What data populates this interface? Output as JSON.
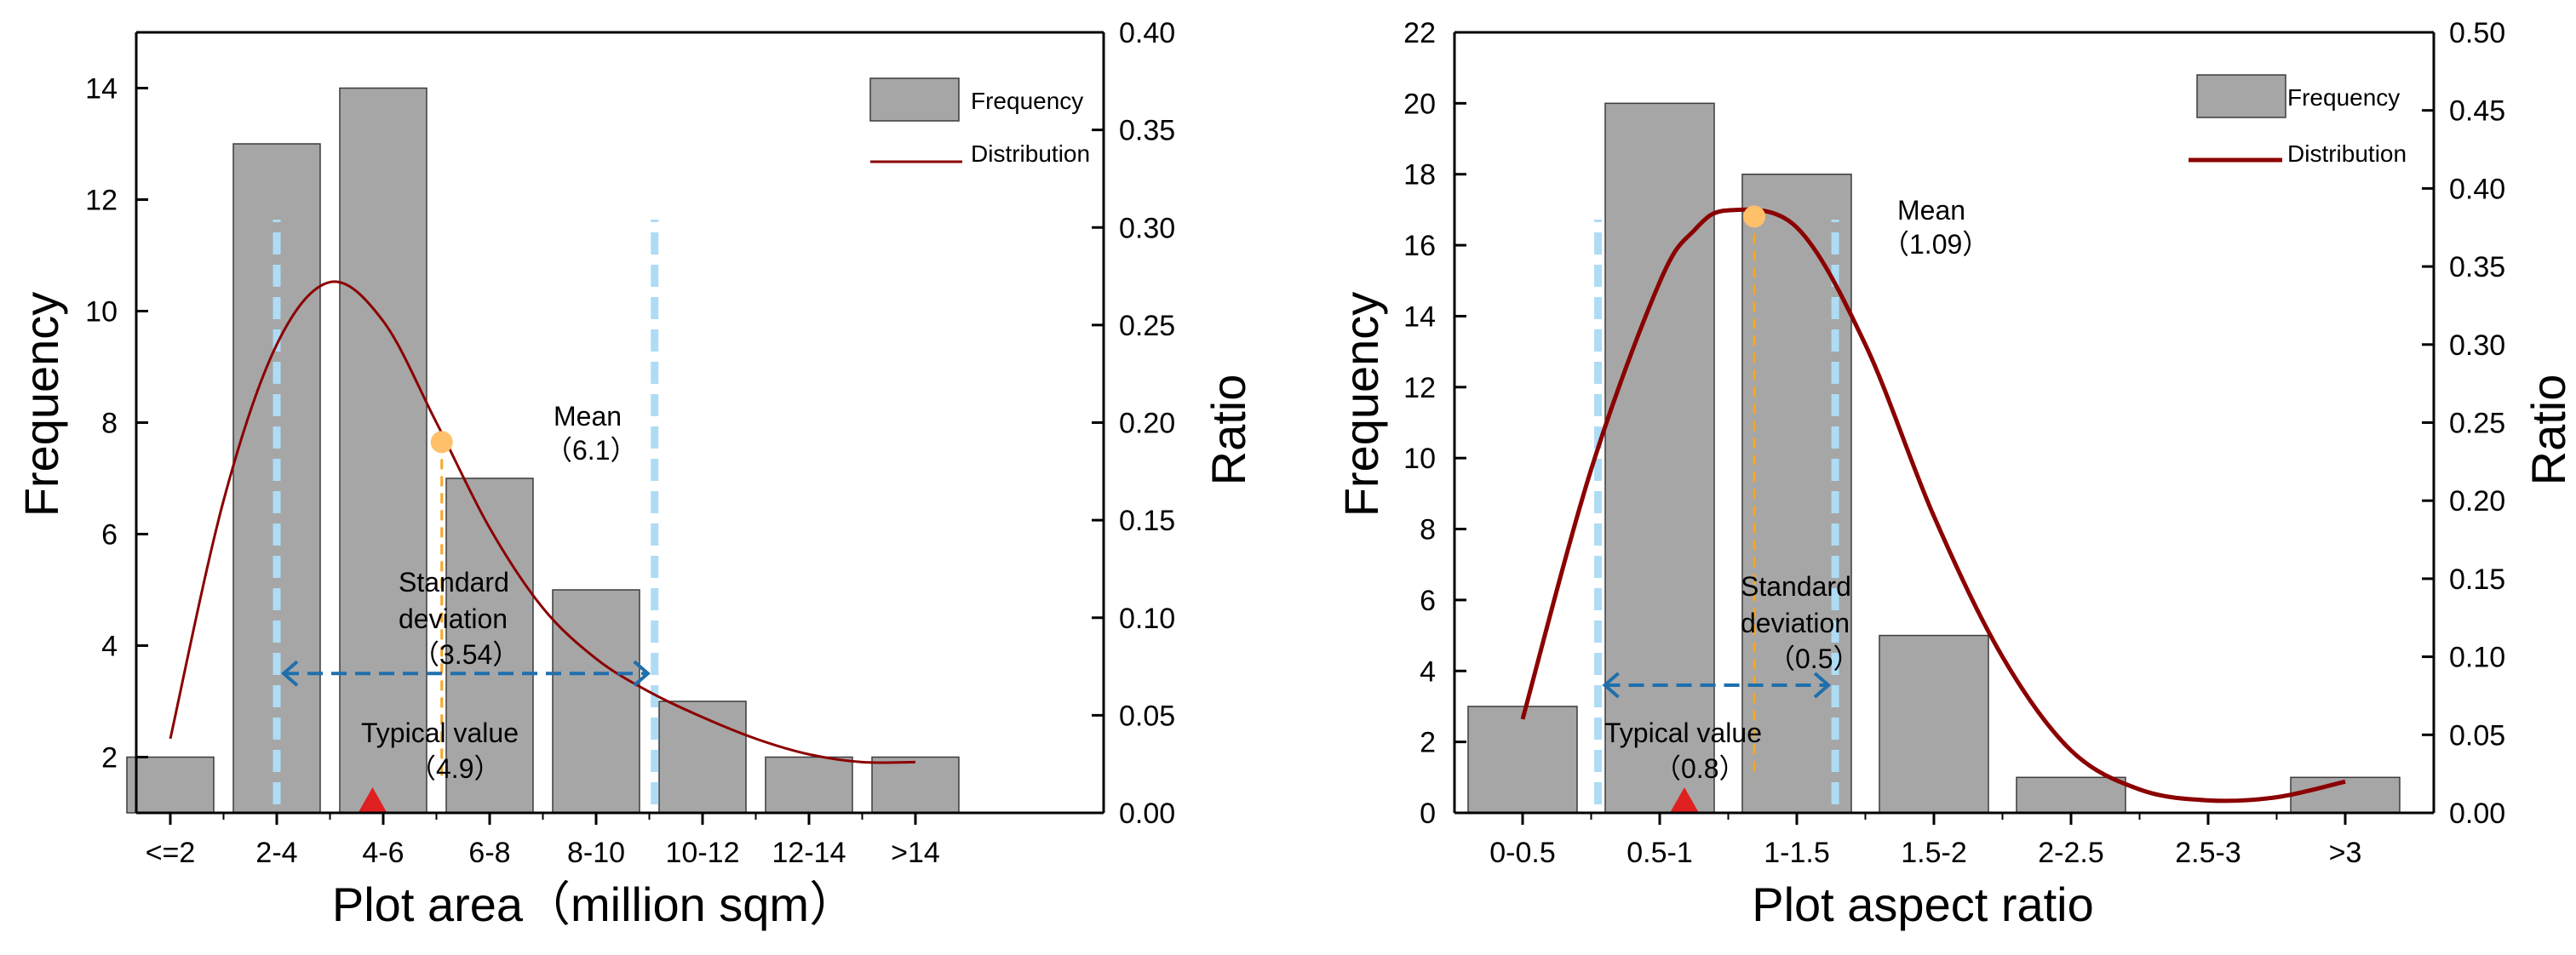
{
  "chart_data": [
    {
      "type": "bar",
      "categories": [
        "<=2",
        "2-4",
        "4-6",
        "6-8",
        "8-10",
        "10-12",
        "12-14",
        ">14"
      ],
      "series": [
        {
          "name": "Frequency",
          "axis": "left",
          "values": [
            2,
            13,
            14,
            7,
            5,
            3,
            2,
            2
          ]
        },
        {
          "name": "Distribution",
          "axis": "right",
          "kind": "line",
          "x": [
            0,
            0.5,
            1,
            1.5,
            2,
            2.5,
            3,
            3.5,
            4,
            4.5,
            5,
            5.5,
            6,
            6.5,
            7
          ],
          "values": [
            0.038,
            0.16,
            0.24,
            0.272,
            0.252,
            0.2,
            0.146,
            0.105,
            0.079,
            0.062,
            0.049,
            0.038,
            0.03,
            0.026,
            0.026
          ]
        }
      ],
      "xlabel": "Plot area（million sqm）",
      "ylabel": "Frequency",
      "y2label": "Ratio",
      "ylim": [
        1,
        15
      ],
      "yticks": [
        2,
        4,
        6,
        8,
        10,
        12,
        14
      ],
      "y2lim": [
        0,
        0.4
      ],
      "y2ticks": [
        "0.00",
        "0.05",
        "0.10",
        "0.15",
        "0.20",
        "0.25",
        "0.30",
        "0.35",
        "0.40"
      ],
      "legend": {
        "position": "top-right",
        "entries": [
          "Frequency",
          "Distribution"
        ]
      },
      "annotations": {
        "mean": {
          "label": "Mean",
          "value": "（6.1）",
          "x": 2.55,
          "ratio": 0.19
        },
        "std": {
          "line1": "Standard",
          "line2": "deviation",
          "value": "（3.54）",
          "x_from": 1.0,
          "x_to": 4.55,
          "freq": 3.5
        },
        "typical": {
          "label": "Typical value",
          "value": "（4.9）",
          "x": 1.9
        },
        "sd_bounds": [
          1.0,
          4.55
        ]
      }
    },
    {
      "type": "bar",
      "categories": [
        "0-0.5",
        "0.5-1",
        "1-1.5",
        "1.5-2",
        "2-2.5",
        "2.5-3",
        ">3"
      ],
      "series": [
        {
          "name": "Frequency",
          "axis": "left",
          "values": [
            3,
            20,
            18,
            5,
            1,
            0,
            1
          ]
        },
        {
          "name": "Distribution",
          "axis": "right",
          "kind": "line",
          "x": [
            0,
            0.5,
            1,
            1.25,
            1.5,
            2,
            2.5,
            3,
            3.5,
            4,
            4.5,
            5,
            5.5,
            6
          ],
          "values": [
            0.06,
            0.22,
            0.34,
            0.373,
            0.386,
            0.375,
            0.3,
            0.19,
            0.1,
            0.04,
            0.015,
            0.008,
            0.01,
            0.02
          ]
        }
      ],
      "xlabel": "Plot aspect ratio",
      "ylabel": "Frequency",
      "y2label": "Ratio",
      "ylim": [
        0,
        22
      ],
      "yticks": [
        0,
        2,
        4,
        6,
        8,
        10,
        12,
        14,
        16,
        18,
        20,
        22
      ],
      "y2lim": [
        0,
        0.5
      ],
      "y2ticks": [
        "0.00",
        "0.05",
        "0.10",
        "0.15",
        "0.20",
        "0.25",
        "0.30",
        "0.35",
        "0.40",
        "0.45",
        "0.50"
      ],
      "legend": {
        "position": "top-right",
        "entries": [
          "Frequency",
          "Distribution"
        ]
      },
      "annotations": {
        "mean": {
          "label": "Mean",
          "value": "（1.09）",
          "x": 1.69,
          "ratio": 0.382
        },
        "std": {
          "line1": "Standard",
          "line2": "deviation",
          "value": "（0.5）",
          "x_from": 0.55,
          "x_to": 2.28,
          "freq": 3.6
        },
        "typical": {
          "label": "Typical value",
          "value": "（0.8）",
          "x": 1.18
        },
        "sd_bounds": [
          0.55,
          2.28
        ]
      }
    }
  ],
  "colors": {
    "bar_fill": "#a6a6a6",
    "bar_stroke": "#3c3c3c",
    "distribution": "#8b0000",
    "sd_line": "#aedcf5",
    "arrow": "#1f6fad",
    "mean_marker": "#ffc06a",
    "mean_line": "#f5a623",
    "typical_marker": "#e02020"
  }
}
